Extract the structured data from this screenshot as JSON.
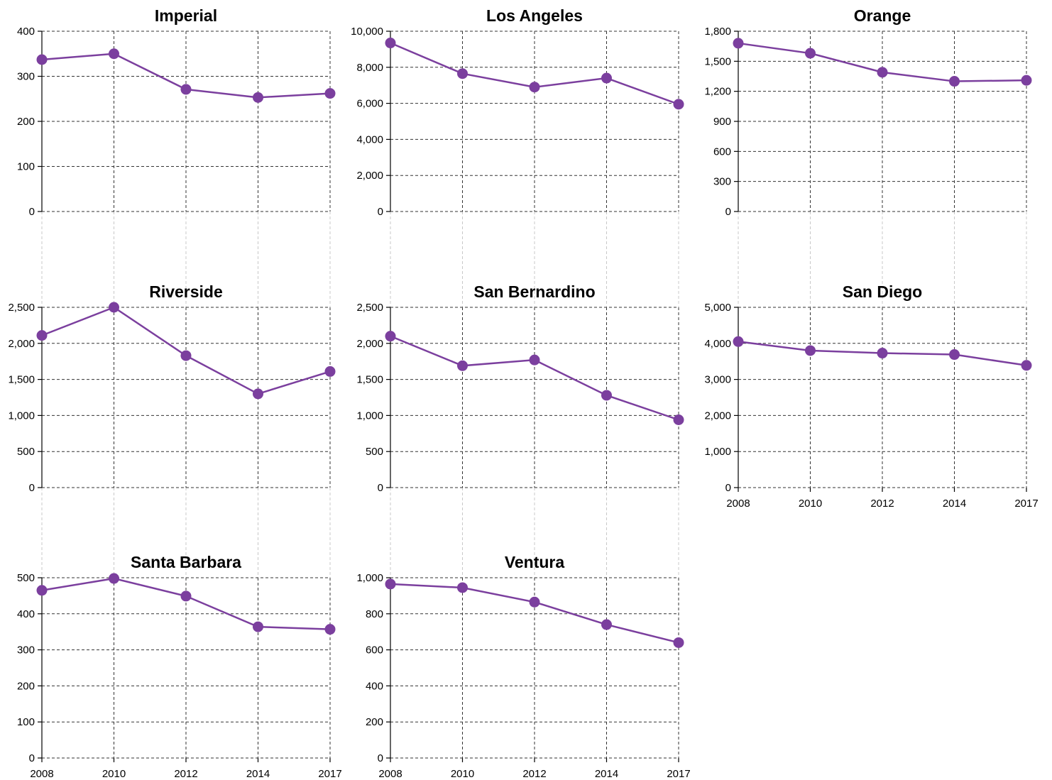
{
  "chart_data": [
    {
      "type": "line",
      "title": "Imperial",
      "x": [
        "2008",
        "2010",
        "2012",
        "2014",
        "2017"
      ],
      "values": [
        337,
        350,
        271,
        253,
        262
      ],
      "yticks": [
        "0",
        "100",
        "200",
        "300",
        "400"
      ],
      "ylim": [
        0,
        400
      ],
      "show_xticks": false,
      "color": "#7b3f9e"
    },
    {
      "type": "line",
      "title": "Los Angeles",
      "x": [
        "2008",
        "2010",
        "2012",
        "2014",
        "2017"
      ],
      "values": [
        9350,
        7650,
        6900,
        7400,
        5950
      ],
      "yticks": [
        "0",
        "2,000",
        "4,000",
        "6,000",
        "8,000",
        "10,000"
      ],
      "ylim": [
        0,
        10000
      ],
      "show_xticks": false,
      "color": "#7b3f9e"
    },
    {
      "type": "line",
      "title": "Orange",
      "x": [
        "2008",
        "2010",
        "2012",
        "2014",
        "2017"
      ],
      "values": [
        1680,
        1580,
        1390,
        1300,
        1310
      ],
      "yticks": [
        "0",
        "300",
        "600",
        "900",
        "1,200",
        "1,500",
        "1,800"
      ],
      "ylim": [
        0,
        1800
      ],
      "show_xticks": false,
      "color": "#7b3f9e"
    },
    {
      "type": "line",
      "title": "Riverside",
      "x": [
        "2008",
        "2010",
        "2012",
        "2014",
        "2017"
      ],
      "values": [
        2110,
        2500,
        1830,
        1300,
        1610
      ],
      "yticks": [
        "0",
        "500",
        "1,000",
        "1,500",
        "2,000",
        "2,500"
      ],
      "ylim": [
        0,
        2500
      ],
      "show_xticks": false,
      "color": "#7b3f9e"
    },
    {
      "type": "line",
      "title": "San Bernardino",
      "x": [
        "2008",
        "2010",
        "2012",
        "2014",
        "2017"
      ],
      "values": [
        2100,
        1690,
        1770,
        1280,
        940
      ],
      "yticks": [
        "0",
        "500",
        "1,000",
        "1,500",
        "2,000",
        "2,500"
      ],
      "ylim": [
        0,
        2500
      ],
      "show_xticks": false,
      "color": "#7b3f9e"
    },
    {
      "type": "line",
      "title": "San Diego",
      "x": [
        "2008",
        "2010",
        "2012",
        "2014",
        "2017"
      ],
      "values": [
        4050,
        3800,
        3730,
        3690,
        3390
      ],
      "yticks": [
        "0",
        "1,000",
        "2,000",
        "3,000",
        "4,000",
        "5,000"
      ],
      "ylim": [
        0,
        5000
      ],
      "show_xticks": true,
      "color": "#7b3f9e"
    },
    {
      "type": "line",
      "title": "Santa Barbara",
      "x": [
        "2008",
        "2010",
        "2012",
        "2014",
        "2017"
      ],
      "values": [
        465,
        498,
        449,
        364,
        357
      ],
      "yticks": [
        "0",
        "100",
        "200",
        "300",
        "400",
        "500"
      ],
      "ylim": [
        0,
        500
      ],
      "show_xticks": true,
      "color": "#7b3f9e"
    },
    {
      "type": "line",
      "title": "Ventura",
      "x": [
        "2008",
        "2010",
        "2012",
        "2014",
        "2017"
      ],
      "values": [
        965,
        945,
        865,
        740,
        640
      ],
      "yticks": [
        "0",
        "200",
        "400",
        "600",
        "800",
        "1,000"
      ],
      "ylim": [
        0,
        1000
      ],
      "show_xticks": true,
      "color": "#7b3f9e"
    }
  ]
}
